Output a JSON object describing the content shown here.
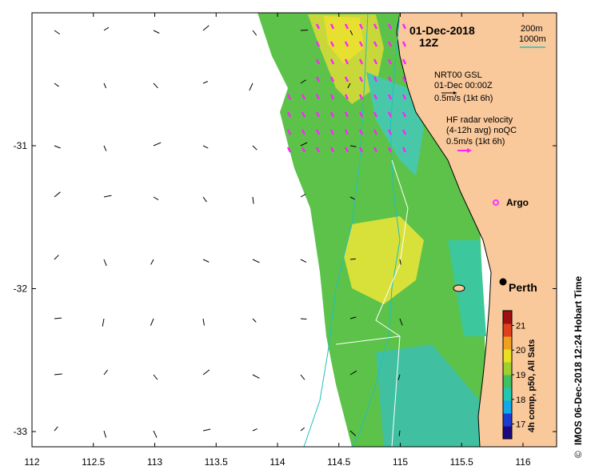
{
  "map": {
    "date_label": "01-Dec-2018",
    "time_label": "12Z",
    "side_credit": "IMOS 06-Dec-2018 12:24 Hobart Time",
    "copyright_symbol": "©",
    "isobath_label_1": "200m",
    "isobath_label_2": "1000m",
    "isobath_color": "#20c0c0",
    "land_color": "#f9c89b",
    "model_legend": {
      "line1": "NRT00 GSL",
      "line2": "01-Dec 00:00Z",
      "line3": "0.5m/s (1kt 6h)",
      "arrow_color": "#000000"
    },
    "radar_legend": {
      "line1": "HF radar velocity",
      "line2": "(4-12h avg) noQC",
      "line3": "0.5m/s (1kt 6h)",
      "arrow_color": "#ff22ff"
    },
    "argo_label": "Argo",
    "argo_color": "#ff33ff",
    "city_label": "Perth",
    "x_axis": {
      "ticks": [
        "112",
        "112.5",
        "113",
        "113.5",
        "114",
        "114.5",
        "115",
        "115.5",
        "116"
      ],
      "values": [
        112,
        112.5,
        113,
        113.5,
        114,
        114.5,
        115,
        115.5,
        116
      ],
      "range": [
        112,
        116.3
      ]
    },
    "y_axis": {
      "ticks": [
        "-31",
        "-32",
        "-33"
      ],
      "values": [
        -31,
        -32,
        -33
      ],
      "range": [
        -33.1,
        -30.1
      ]
    },
    "colorbar": {
      "label": "4h comp, p50, All Sats",
      "ticks": [
        "21",
        "20",
        "19",
        "18",
        "17"
      ],
      "values": [
        21,
        20,
        19,
        18,
        17
      ],
      "range": [
        16.4,
        21.6
      ],
      "colors": [
        "#1a0a80",
        "#1a3cd0",
        "#10a8e8",
        "#20c8b0",
        "#40c060",
        "#a0d030",
        "#e8e020",
        "#f0a020",
        "#e04020",
        "#a01010"
      ]
    }
  }
}
